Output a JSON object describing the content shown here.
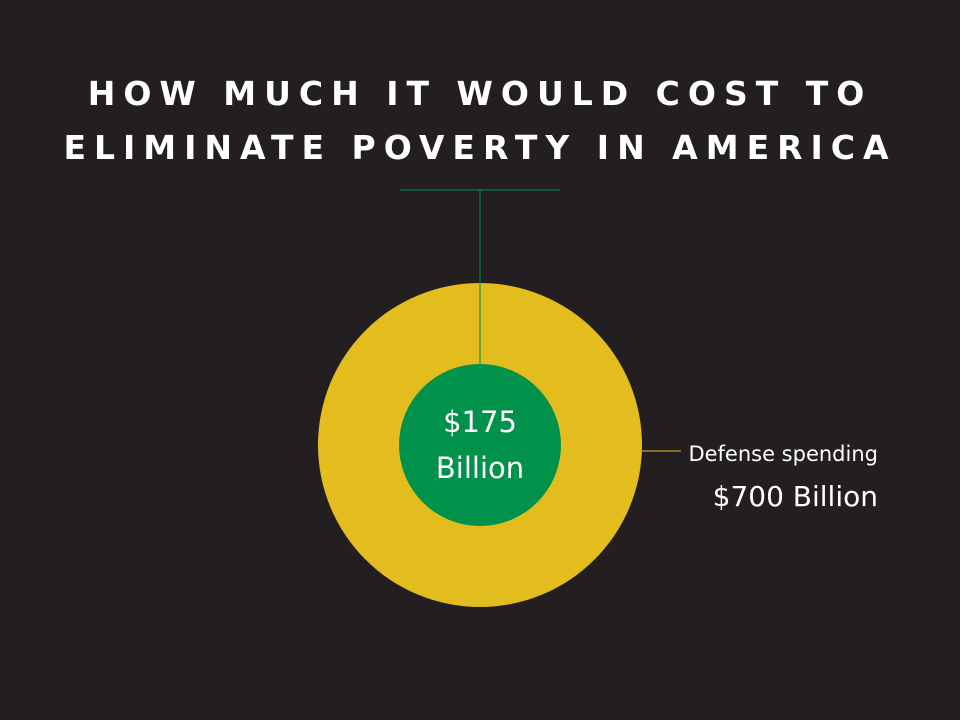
{
  "chart_data": {
    "type": "bubble",
    "title_lines": [
      "HOW MUCH IT WOULD COST TO",
      "ELIMINATE POVERTY IN AMERICA"
    ],
    "unit": "Billion",
    "series": [
      {
        "id": "defense",
        "label": "Defense spending",
        "value_text": "$700 Billion",
        "value": 700,
        "color": "#e2bd1d"
      },
      {
        "id": "poverty",
        "label": "",
        "value_text_lines": [
          "$175",
          "Billion"
        ],
        "value": 175,
        "color": "#00914a"
      }
    ],
    "leader_colors": {
      "poverty": "#00914a",
      "defense": "#e2bd1d"
    }
  }
}
